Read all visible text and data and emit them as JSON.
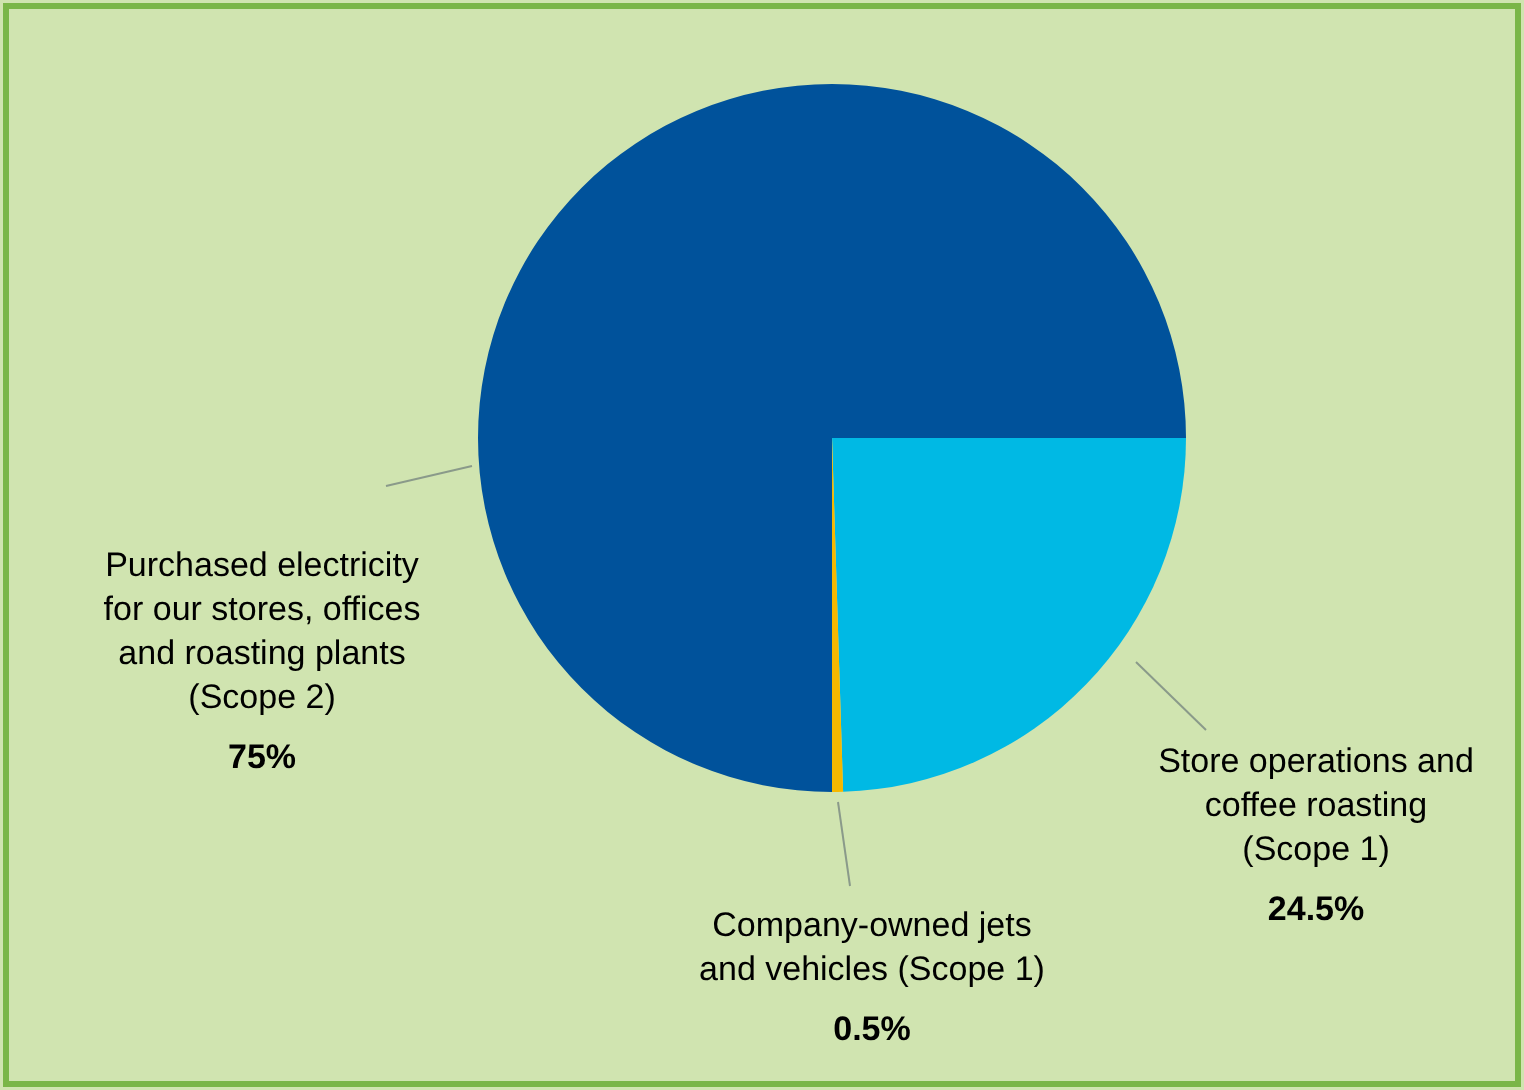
{
  "chart_data": {
    "type": "pie",
    "categories": [
      "Store operations and\ncoffee roasting\n(Scope 1)",
      "Company-owned jets\nand vehicles (Scope 1)",
      "Purchased electricity\nfor our stores, offices\nand roasting plants\n(Scope 2)"
    ],
    "values": [
      24.5,
      0.5,
      75
    ],
    "colors": [
      "#00b9e4",
      "#f5b800",
      "#00529b"
    ],
    "value_labels": [
      "24.5%",
      "0.5%",
      "75%"
    ]
  }
}
